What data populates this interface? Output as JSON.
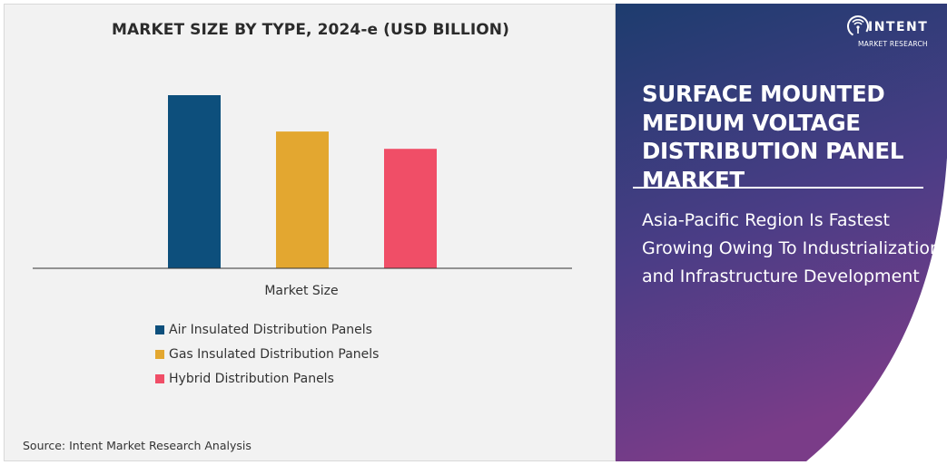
{
  "chart_data": {
    "type": "bar",
    "title": "MARKET SIZE BY TYPE, 2024-e (USD BILLION)",
    "xlabel": "Market Size",
    "ylabel": "",
    "categories": [
      "Market Size"
    ],
    "series": [
      {
        "name": "Air Insulated Distribution Panels",
        "value": 100,
        "color": "#0d4f7c"
      },
      {
        "name": "Gas Insulated Distribution Panels",
        "value": 79,
        "color": "#e3a730"
      },
      {
        "name": "Hybrid Distribution Panels",
        "value": 69,
        "color": "#f04e67"
      }
    ],
    "ylim": [
      0,
      100
    ],
    "grid": false,
    "legend_position": "bottom-left"
  },
  "source": "Source: Intent Market Research Analysis",
  "logo": {
    "name": "INTENT",
    "tagline": "MARKET RESEARCH"
  },
  "market_title": "SURFACE MOUNTED MEDIUM VOLTAGE DISTRIBUTION PANEL MARKET",
  "subtitle": "Asia-Pacific Region Is Fastest Growing Owing To Industrialization and Infrastructure Development",
  "colors": {
    "panel_top": "#1d3c6e",
    "panel_mid": "#4b3d86",
    "panel_bottom": "#7a3c88"
  }
}
